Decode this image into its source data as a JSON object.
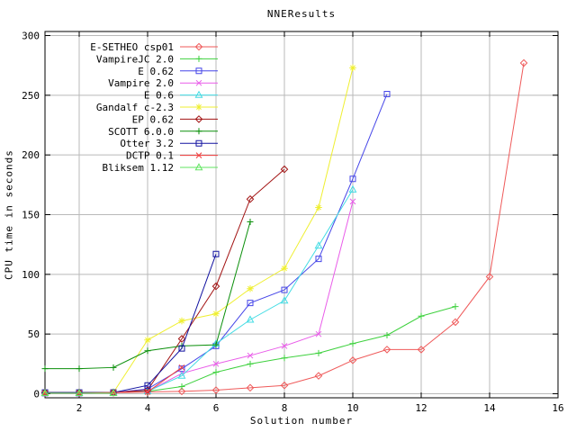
{
  "title": "NNEResults",
  "chart_data": {
    "type": "line",
    "title": "NNEResults",
    "xlabel": "Solution number",
    "ylabel": "CPU time in seconds",
    "xlim": [
      1,
      16
    ],
    "ylim": [
      0,
      300
    ],
    "xticks": [
      2,
      4,
      6,
      8,
      10,
      12,
      14,
      16
    ],
    "yticks": [
      0,
      50,
      100,
      150,
      200,
      250,
      300
    ],
    "grid": true,
    "grid_color": "#b9b9b9",
    "border_color": "#000000",
    "legend_position": "top-left-inside",
    "series": [
      {
        "name": "E-SETHEO csp01",
        "color": "#ef5a5a",
        "marker": "diamond",
        "points": [
          [
            1,
            0.5
          ],
          [
            2,
            0.5
          ],
          [
            3,
            1
          ],
          [
            4,
            1.5
          ],
          [
            5,
            2
          ],
          [
            6,
            3
          ],
          [
            7,
            5
          ],
          [
            8,
            7
          ],
          [
            9,
            15
          ],
          [
            10,
            28
          ],
          [
            11,
            37
          ],
          [
            12,
            37
          ],
          [
            13,
            60
          ],
          [
            14,
            98
          ],
          [
            15,
            277
          ]
        ]
      },
      {
        "name": "VampireJC 2.0",
        "color": "#3ed13e",
        "marker": "plus",
        "points": [
          [
            1,
            1
          ],
          [
            2,
            1
          ],
          [
            3,
            1
          ],
          [
            4,
            2
          ],
          [
            5,
            6
          ],
          [
            6,
            18
          ],
          [
            7,
            25
          ],
          [
            8,
            30
          ],
          [
            9,
            34
          ],
          [
            10,
            42
          ],
          [
            11,
            49
          ],
          [
            12,
            65
          ],
          [
            13,
            73
          ]
        ]
      },
      {
        "name": "E 0.62",
        "color": "#4646e8",
        "marker": "square",
        "points": [
          [
            1,
            0.5
          ],
          [
            2,
            0.5
          ],
          [
            3,
            1
          ],
          [
            4,
            4
          ],
          [
            5,
            21
          ],
          [
            6,
            40
          ],
          [
            7,
            76
          ],
          [
            8,
            87
          ],
          [
            9,
            113
          ],
          [
            10,
            180
          ],
          [
            11,
            251
          ]
        ]
      },
      {
        "name": "Vampire 2.0",
        "color": "#e95ce9",
        "marker": "x",
        "points": [
          [
            1,
            0.5
          ],
          [
            2,
            0.5
          ],
          [
            3,
            1
          ],
          [
            4,
            2
          ],
          [
            5,
            17
          ],
          [
            6,
            25
          ],
          [
            7,
            32
          ],
          [
            8,
            40
          ],
          [
            9,
            50
          ],
          [
            10,
            161
          ]
        ]
      },
      {
        "name": "E 0.6",
        "color": "#43dce4",
        "marker": "triangle",
        "points": [
          [
            1,
            0.5
          ],
          [
            2,
            0.5
          ],
          [
            3,
            1
          ],
          [
            4,
            2
          ],
          [
            5,
            15
          ],
          [
            6,
            42
          ],
          [
            7,
            62
          ],
          [
            8,
            78
          ],
          [
            9,
            124
          ],
          [
            10,
            171
          ]
        ]
      },
      {
        "name": "Gandalf c-2.3",
        "color": "#efef30",
        "marker": "star",
        "points": [
          [
            1,
            1
          ],
          [
            2,
            1
          ],
          [
            3,
            1
          ],
          [
            4,
            45
          ],
          [
            5,
            61
          ],
          [
            6,
            67
          ],
          [
            7,
            88
          ],
          [
            8,
            105
          ],
          [
            9,
            156
          ],
          [
            10,
            273
          ]
        ]
      },
      {
        "name": "EP 0.62",
        "color": "#a21212",
        "marker": "diamond",
        "points": [
          [
            1,
            1
          ],
          [
            2,
            1
          ],
          [
            3,
            1
          ],
          [
            4,
            3
          ],
          [
            5,
            46
          ],
          [
            6,
            90
          ],
          [
            7,
            163
          ],
          [
            8,
            188
          ]
        ]
      },
      {
        "name": "SCOTT 6.0.0",
        "color": "#0a8f0a",
        "marker": "plus",
        "points": [
          [
            1,
            21
          ],
          [
            2,
            21
          ],
          [
            3,
            22
          ],
          [
            4,
            36
          ],
          [
            5,
            40
          ],
          [
            6,
            41
          ],
          [
            7,
            144
          ]
        ]
      },
      {
        "name": "Otter 3.2",
        "color": "#1212a0",
        "marker": "square",
        "points": [
          [
            1,
            1
          ],
          [
            2,
            1
          ],
          [
            3,
            1
          ],
          [
            4,
            7
          ],
          [
            5,
            38
          ],
          [
            6,
            117
          ]
        ]
      },
      {
        "name": "DCTP 0.1",
        "color": "#f43d3d",
        "marker": "x",
        "points": [
          [
            1,
            0.5
          ],
          [
            2,
            0.5
          ],
          [
            3,
            1
          ],
          [
            4,
            1.5
          ],
          [
            5,
            22
          ]
        ]
      },
      {
        "name": "Bliksem 1.12",
        "color": "#62e562",
        "marker": "triangle",
        "points": [
          [
            1,
            0.5
          ],
          [
            2,
            0.5
          ],
          [
            3,
            0.5
          ]
        ]
      }
    ]
  }
}
